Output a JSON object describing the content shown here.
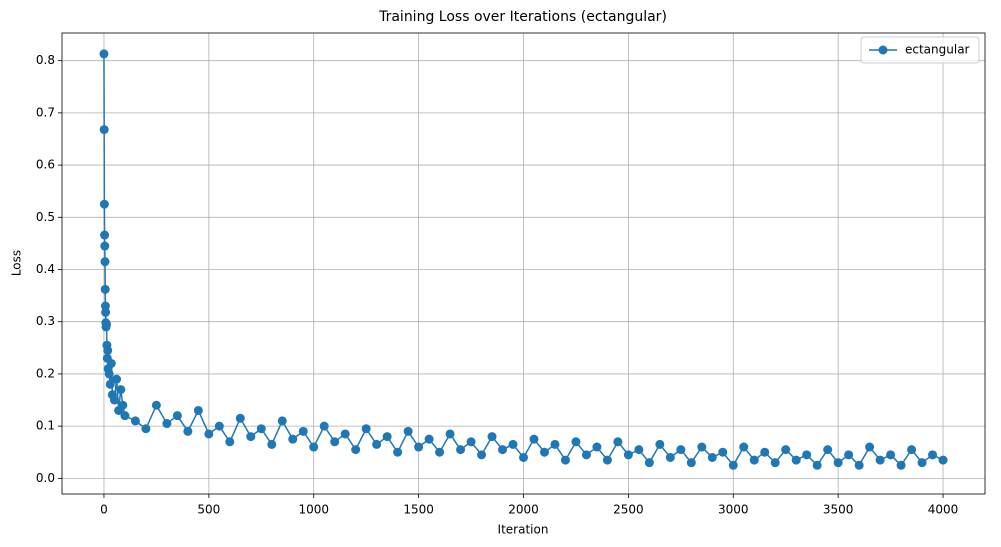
{
  "chart_data": {
    "type": "line",
    "title": "Training Loss over Iterations (ectangular)",
    "x_label": "Iteration",
    "y_label": "Loss",
    "xlim": [
      -200,
      4200
    ],
    "ylim": [
      -0.03,
      0.853
    ],
    "xticks": [
      0,
      500,
      1000,
      1500,
      2000,
      2500,
      3000,
      3500,
      4000
    ],
    "yticks": [
      {
        "value": 0,
        "label": "0.0"
      },
      0.1,
      0.2,
      0.3,
      0.4,
      0.5,
      0.6,
      0.7,
      0.8
    ],
    "grid": true,
    "legend": "upper right",
    "x": [
      0,
      1,
      2,
      3,
      4,
      5,
      6,
      7,
      8,
      9,
      10,
      12,
      14,
      16,
      18,
      20,
      25,
      30,
      35,
      40,
      50,
      60,
      70,
      80,
      90,
      100,
      150,
      200,
      250,
      300,
      350,
      400,
      450,
      500,
      550,
      600,
      650,
      700,
      750,
      800,
      850,
      900,
      950,
      1000,
      1050,
      1100,
      1150,
      1200,
      1250,
      1300,
      1350,
      1400,
      1450,
      1500,
      1550,
      1600,
      1650,
      1700,
      1750,
      1800,
      1850,
      1900,
      1950,
      2000,
      2050,
      2100,
      2150,
      2200,
      2250,
      2300,
      2350,
      2400,
      2450,
      2500,
      2550,
      2600,
      2650,
      2700,
      2750,
      2800,
      2850,
      2900,
      2950,
      3000,
      3050,
      3100,
      3150,
      3200,
      3250,
      3300,
      3350,
      3400,
      3450,
      3500,
      3550,
      3600,
      3650,
      3700,
      3750,
      3800,
      3850,
      3900,
      3950,
      4000
    ],
    "series": [
      {
        "name": "ectangular",
        "color": "#1f77b4",
        "values": [
          0.813,
          0.668,
          0.525,
          0.466,
          0.445,
          0.415,
          0.362,
          0.33,
          0.318,
          0.298,
          0.29,
          0.295,
          0.255,
          0.23,
          0.245,
          0.21,
          0.2,
          0.18,
          0.22,
          0.16,
          0.15,
          0.19,
          0.13,
          0.17,
          0.14,
          0.12,
          0.11,
          0.095,
          0.14,
          0.105,
          0.12,
          0.09,
          0.13,
          0.085,
          0.1,
          0.07,
          0.115,
          0.08,
          0.095,
          0.065,
          0.11,
          0.075,
          0.09,
          0.06,
          0.1,
          0.07,
          0.085,
          0.055,
          0.095,
          0.065,
          0.08,
          0.05,
          0.09,
          0.06,
          0.075,
          0.05,
          0.085,
          0.055,
          0.07,
          0.045,
          0.08,
          0.055,
          0.065,
          0.04,
          0.075,
          0.05,
          0.065,
          0.035,
          0.07,
          0.045,
          0.06,
          0.035,
          0.07,
          0.045,
          0.055,
          0.03,
          0.065,
          0.04,
          0.055,
          0.03,
          0.06,
          0.04,
          0.05,
          0.025,
          0.06,
          0.035,
          0.05,
          0.03,
          0.055,
          0.035,
          0.045,
          0.025,
          0.055,
          0.03,
          0.045,
          0.025,
          0.06,
          0.035,
          0.045,
          0.025,
          0.055,
          0.03,
          0.045,
          0.035
        ]
      }
    ]
  }
}
